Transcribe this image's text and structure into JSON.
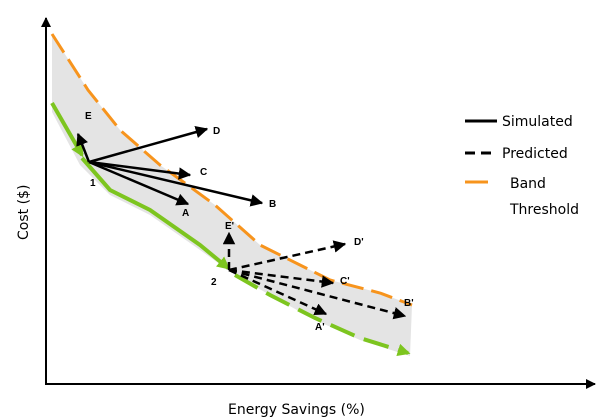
{
  "axes": {
    "x_label": "Energy Savings (%)",
    "y_label": "Cost ($)"
  },
  "points": {
    "p1": "1",
    "p2": "2"
  },
  "simulated_labels": {
    "a": "A",
    "b": "B",
    "c": "C",
    "d": "D",
    "e": "E"
  },
  "predicted_labels": {
    "a": "A'",
    "b": "B'",
    "c": "C'",
    "d": "D'",
    "e": "E'"
  },
  "legend": {
    "simulated": "Simulated",
    "predicted": "Predicted",
    "band_line1": "Band",
    "band_line2": "Threshold"
  },
  "colors": {
    "band_fill": "#e4e4e4",
    "threshold": "#f7941d",
    "lower": "#7dc51f",
    "arrow": "#000000"
  }
}
